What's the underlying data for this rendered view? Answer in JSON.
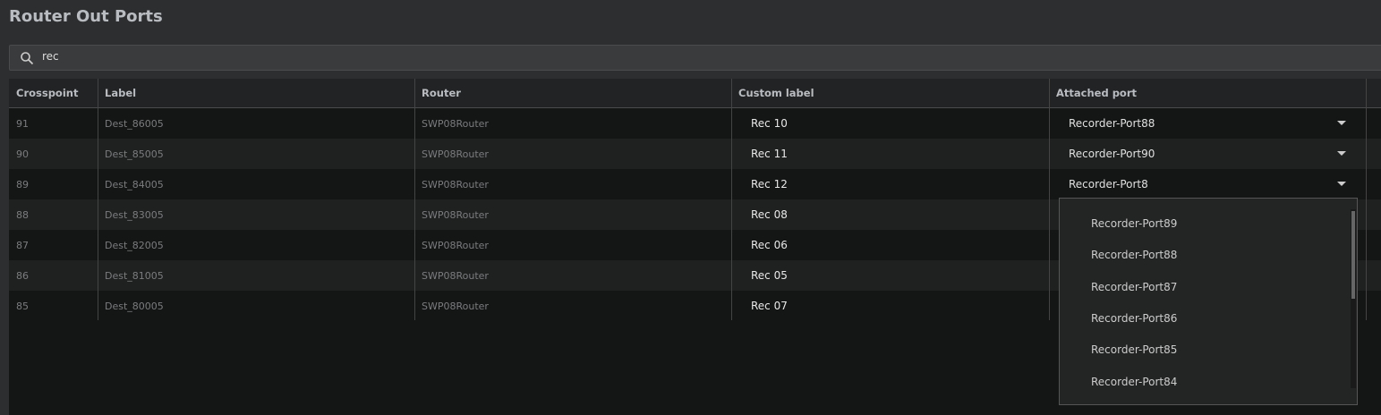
{
  "title": "Router Out Ports",
  "search": {
    "value": "rec",
    "icon": "search-icon"
  },
  "columns": [
    "Crosspoint",
    "Label",
    "Router",
    "Custom label",
    "Attached port"
  ],
  "rows": [
    {
      "crosspoint": "91",
      "label": "Dest_86005",
      "router": "SWP08Router",
      "custom": "Rec 10",
      "port": "Recorder-Port88"
    },
    {
      "crosspoint": "90",
      "label": "Dest_85005",
      "router": "SWP08Router",
      "custom": "Rec 11",
      "port": "Recorder-Port90"
    },
    {
      "crosspoint": "89",
      "label": "Dest_84005",
      "router": "SWP08Router",
      "custom": "Rec 12",
      "port": "Recorder-Port8"
    },
    {
      "crosspoint": "88",
      "label": "Dest_83005",
      "router": "SWP08Router",
      "custom": "Rec 08",
      "port": ""
    },
    {
      "crosspoint": "87",
      "label": "Dest_82005",
      "router": "SWP08Router",
      "custom": "Rec 06",
      "port": ""
    },
    {
      "crosspoint": "86",
      "label": "Dest_81005",
      "router": "SWP08Router",
      "custom": "Rec 05",
      "port": ""
    },
    {
      "crosspoint": "85",
      "label": "Dest_80005",
      "router": "SWP08Router",
      "custom": "Rec 07",
      "port": ""
    }
  ],
  "dropdown_options": [
    "Recorder-Port89",
    "Recorder-Port88",
    "Recorder-Port87",
    "Recorder-Port86",
    "Recorder-Port85",
    "Recorder-Port84"
  ]
}
